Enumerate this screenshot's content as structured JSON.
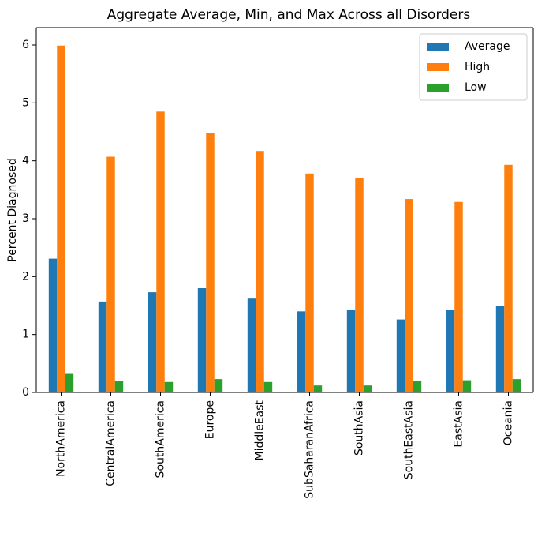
{
  "chart_data": {
    "type": "bar",
    "title": "Aggregate Average, Min, and Max Across all Disorders",
    "xlabel": "",
    "ylabel": "Percent Diagnosed",
    "ylim": [
      0,
      6.3
    ],
    "yticks": [
      0,
      1,
      2,
      3,
      4,
      5,
      6
    ],
    "grid": false,
    "legend_position": "top-right",
    "categories": [
      "NorthAmerica",
      "CentralAmerica",
      "SouthAmerica",
      "Europe",
      "MiddleEast",
      "SubSaharanAfrica",
      "SouthAsia",
      "SouthEastAsia",
      "EastAsia",
      "Oceania"
    ],
    "series": [
      {
        "name": "Average",
        "color": "#1f77b4",
        "values": [
          2.31,
          1.57,
          1.73,
          1.8,
          1.62,
          1.4,
          1.43,
          1.26,
          1.42,
          1.5
        ]
      },
      {
        "name": "High",
        "color": "#ff7f0e",
        "values": [
          5.99,
          4.07,
          4.85,
          4.48,
          4.17,
          3.78,
          3.7,
          3.34,
          3.29,
          3.93
        ]
      },
      {
        "name": "Low",
        "color": "#2ca02c",
        "values": [
          0.32,
          0.2,
          0.18,
          0.23,
          0.18,
          0.12,
          0.12,
          0.2,
          0.21,
          0.23
        ]
      }
    ]
  }
}
